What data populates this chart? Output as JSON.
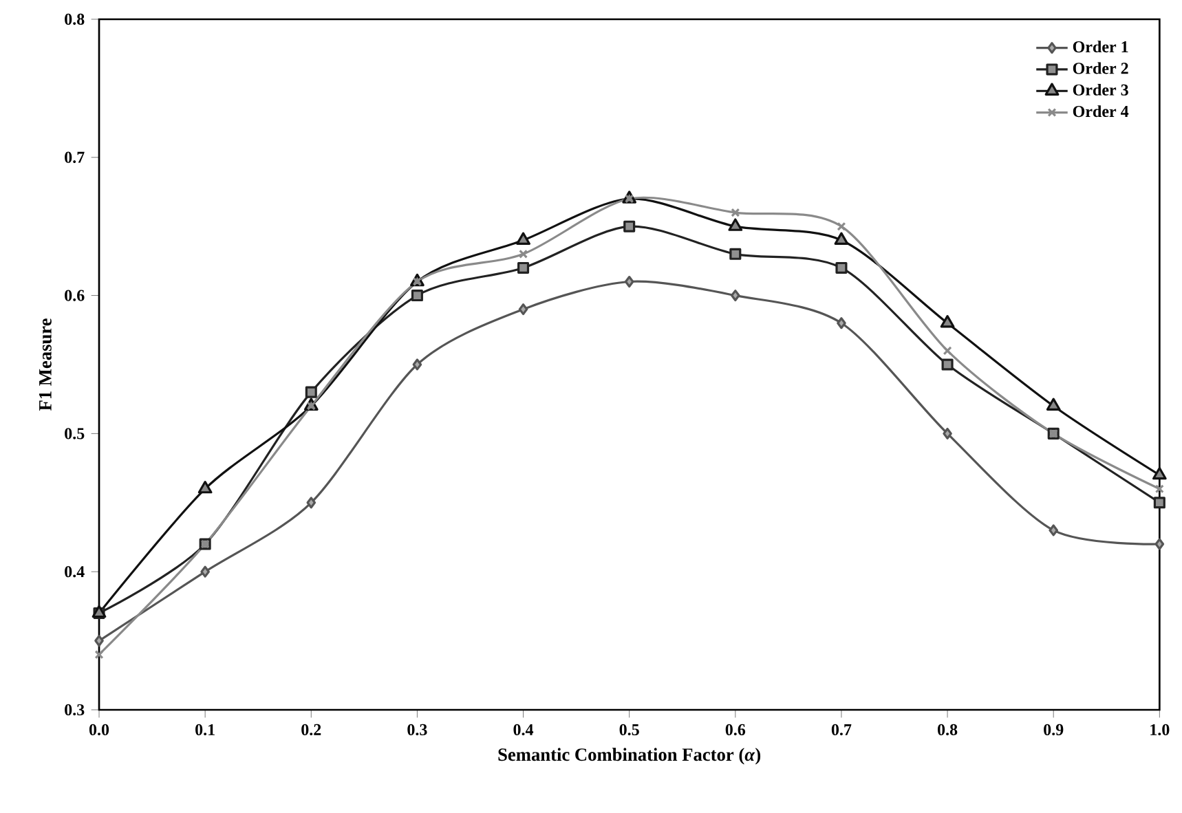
{
  "chart_data": {
    "type": "line",
    "xlabel": "Semantic Combination Factor (*α*)",
    "ylabel": "F1 Measure",
    "x": [
      0,
      0.1,
      0.2,
      0.3,
      0.4,
      0.5,
      0.6,
      0.7,
      0.8,
      0.9,
      1.0
    ],
    "series": [
      {
        "name": "Order 1",
        "color": "#555555",
        "marker": "diamond",
        "values": [
          0.35,
          0.4,
          0.45,
          0.55,
          0.59,
          0.61,
          0.6,
          0.58,
          0.5,
          0.43,
          0.42
        ]
      },
      {
        "name": "Order 2",
        "color": "#222222",
        "marker": "square",
        "values": [
          0.37,
          0.42,
          0.53,
          0.6,
          0.62,
          0.65,
          0.63,
          0.62,
          0.55,
          0.5,
          0.45
        ]
      },
      {
        "name": "Order 3",
        "color": "#111111",
        "marker": "triangle",
        "values": [
          0.37,
          0.46,
          0.52,
          0.61,
          0.64,
          0.67,
          0.65,
          0.64,
          0.58,
          0.52,
          0.47
        ]
      },
      {
        "name": "Order 4",
        "color": "#8a8a8a",
        "marker": "cross",
        "values": [
          0.34,
          0.42,
          0.52,
          0.61,
          0.63,
          0.67,
          0.66,
          0.65,
          0.56,
          0.5,
          0.46
        ]
      }
    ],
    "xlim": [
      0,
      1
    ],
    "ylim": [
      0.3,
      0.8
    ],
    "xticks": [
      {
        "value": 0,
        "label": "0.0"
      },
      {
        "value": 0.1,
        "label": "0.1"
      },
      {
        "value": 0.2,
        "label": "0.2"
      },
      {
        "value": 0.3,
        "label": "0.3"
      },
      {
        "value": 0.4,
        "label": "0.4"
      },
      {
        "value": 0.5,
        "label": "0.5"
      },
      {
        "value": 0.6,
        "label": "0.6"
      },
      {
        "value": 0.7,
        "label": "0.7"
      },
      {
        "value": 0.8,
        "label": "0.8"
      },
      {
        "value": 0.9,
        "label": "0.9"
      },
      {
        "value": 1.0,
        "label": "1.0"
      }
    ],
    "yticks": [
      {
        "value": 0.3,
        "label": "0.3"
      },
      {
        "value": 0.4,
        "label": "0.4"
      },
      {
        "value": 0.5,
        "label": "0.5"
      },
      {
        "value": 0.6,
        "label": "0.6"
      },
      {
        "value": 0.7,
        "label": "0.7"
      },
      {
        "value": 0.8,
        "label": "0.8"
      }
    ],
    "grid": false,
    "legend": "top right",
    "line_style": "solid"
  }
}
